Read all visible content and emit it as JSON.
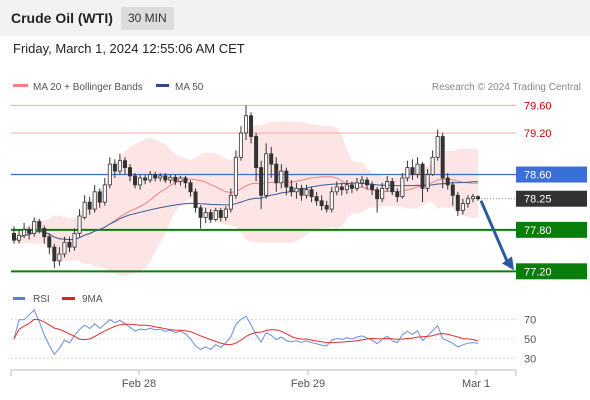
{
  "header": {
    "title": "Crude Oil (WTI)",
    "timeframe": "30 MIN"
  },
  "datetime": "Friday, March 1, 2024 12:55:06 AM CET",
  "credit": "Research © 2024 Trading Central",
  "colors": {
    "resistance": "#f4a6a6",
    "resistance_text": "#cc0000",
    "pivot": "#3a6fd8",
    "support": "#0a7d0a",
    "current": "#333333",
    "candle_up": "#ffffff",
    "candle_down": "#333333",
    "band": "#fde0e0",
    "ma20": "#f08080",
    "ma50": "#3a5a9a",
    "rsi": "#6a8fe0",
    "rsi_ma": "#e03030",
    "arrow": "#2a5aa0"
  },
  "chart_data": {
    "type": "candlestick",
    "legend": [
      {
        "name": "MA 20 + Bollinger Bands",
        "color": "#f08080"
      },
      {
        "name": "MA 50",
        "color": "#2a4a8a"
      }
    ],
    "x_ticks": [
      "Feb 28",
      "Feb 29",
      "Mar 1"
    ],
    "ylim": [
      77.06,
      79.75
    ],
    "levels": [
      {
        "value": 79.6,
        "label": "79.60",
        "kind": "resistance"
      },
      {
        "value": 79.2,
        "label": "79.20",
        "kind": "resistance"
      },
      {
        "value": 78.6,
        "label": "78.60",
        "kind": "pivot"
      },
      {
        "value": 78.25,
        "label": "78.25",
        "kind": "current"
      },
      {
        "value": 77.8,
        "label": "77.80",
        "kind": "support"
      },
      {
        "value": 77.2,
        "label": "77.20",
        "kind": "support"
      }
    ],
    "candles": [
      [
        77.75,
        77.65,
        77.85,
        77.6
      ],
      [
        77.65,
        77.72,
        77.8,
        77.6
      ],
      [
        77.72,
        77.8,
        77.9,
        77.68
      ],
      [
        77.8,
        77.75,
        77.85,
        77.66
      ],
      [
        77.75,
        77.92,
        77.98,
        77.7
      ],
      [
        77.92,
        77.82,
        77.96,
        77.75
      ],
      [
        77.82,
        77.7,
        77.86,
        77.6
      ],
      [
        77.7,
        77.55,
        77.75,
        77.45
      ],
      [
        77.55,
        77.35,
        77.6,
        77.25
      ],
      [
        77.35,
        77.45,
        77.55,
        77.28
      ],
      [
        77.45,
        77.62,
        77.7,
        77.4
      ],
      [
        77.62,
        77.55,
        77.7,
        77.48
      ],
      [
        77.55,
        77.75,
        77.82,
        77.5
      ],
      [
        77.75,
        78.0,
        78.1,
        77.7
      ],
      [
        77.98,
        78.2,
        78.3,
        77.95
      ],
      [
        78.2,
        78.1,
        78.28,
        78.02
      ],
      [
        78.1,
        78.35,
        78.45,
        78.05
      ],
      [
        78.35,
        78.2,
        78.4,
        78.12
      ],
      [
        78.2,
        78.45,
        78.55,
        78.15
      ],
      [
        78.45,
        78.75,
        78.85,
        78.4
      ],
      [
        78.75,
        78.65,
        78.82,
        78.55
      ],
      [
        78.65,
        78.8,
        78.9,
        78.6
      ],
      [
        78.8,
        78.7,
        78.85,
        78.6
      ],
      [
        78.7,
        78.58,
        78.75,
        78.5
      ],
      [
        78.58,
        78.45,
        78.62,
        78.4
      ],
      [
        78.45,
        78.55,
        78.6,
        78.38
      ],
      [
        78.55,
        78.52,
        78.6,
        78.46
      ],
      [
        78.52,
        78.6,
        78.65,
        78.48
      ],
      [
        78.6,
        78.55,
        78.64,
        78.5
      ],
      [
        78.55,
        78.58,
        78.62,
        78.5
      ],
      [
        78.58,
        78.52,
        78.62,
        78.48
      ],
      [
        78.52,
        78.56,
        78.6,
        78.47
      ],
      [
        78.56,
        78.5,
        78.6,
        78.45
      ],
      [
        78.5,
        78.55,
        78.58,
        78.44
      ],
      [
        78.55,
        78.48,
        78.58,
        78.4
      ],
      [
        78.48,
        78.35,
        78.52,
        78.28
      ],
      [
        78.35,
        78.12,
        78.4,
        78.05
      ],
      [
        78.12,
        77.98,
        78.16,
        77.82
      ],
      [
        77.98,
        78.05,
        78.12,
        77.9
      ],
      [
        78.05,
        77.95,
        78.1,
        77.9
      ],
      [
        77.95,
        78.08,
        78.12,
        77.92
      ],
      [
        78.08,
        77.98,
        78.12,
        77.92
      ],
      [
        77.98,
        78.1,
        78.14,
        77.93
      ],
      [
        78.1,
        78.3,
        78.4,
        78.05
      ],
      [
        78.3,
        78.85,
        78.95,
        78.25
      ],
      [
        78.85,
        79.2,
        79.3,
        78.8
      ],
      [
        79.2,
        79.45,
        79.6,
        79.1
      ],
      [
        79.45,
        79.15,
        79.5,
        79.05
      ],
      [
        79.15,
        78.7,
        79.2,
        78.5
      ],
      [
        78.7,
        78.3,
        78.8,
        78.1
      ],
      [
        78.3,
        78.9,
        79.05,
        78.25
      ],
      [
        78.9,
        78.75,
        79.0,
        78.55
      ],
      [
        78.75,
        78.48,
        78.85,
        78.35
      ],
      [
        78.48,
        78.65,
        78.75,
        78.4
      ],
      [
        78.65,
        78.42,
        78.7,
        78.3
      ],
      [
        78.42,
        78.35,
        78.52,
        78.28
      ],
      [
        78.35,
        78.4,
        78.48,
        78.25
      ],
      [
        78.4,
        78.3,
        78.45,
        78.22
      ],
      [
        78.3,
        78.38,
        78.45,
        78.25
      ],
      [
        78.38,
        78.28,
        78.42,
        78.2
      ],
      [
        78.28,
        78.22,
        78.35,
        78.15
      ],
      [
        78.22,
        78.15,
        78.3,
        78.08
      ],
      [
        78.15,
        78.1,
        78.22,
        78.05
      ],
      [
        78.1,
        78.35,
        78.42,
        78.05
      ],
      [
        78.35,
        78.42,
        78.5,
        78.3
      ],
      [
        78.42,
        78.38,
        78.48,
        78.3
      ],
      [
        78.38,
        78.45,
        78.52,
        78.32
      ],
      [
        78.45,
        78.4,
        78.5,
        78.33
      ],
      [
        78.4,
        78.48,
        78.55,
        78.36
      ],
      [
        78.48,
        78.52,
        78.58,
        78.42
      ],
      [
        78.52,
        78.45,
        78.56,
        78.38
      ],
      [
        78.45,
        78.38,
        78.5,
        78.3
      ],
      [
        78.38,
        78.25,
        78.42,
        78.05
      ],
      [
        78.25,
        78.4,
        78.48,
        78.2
      ],
      [
        78.4,
        78.5,
        78.58,
        78.35
      ],
      [
        78.5,
        78.35,
        78.55,
        78.3
      ],
      [
        78.35,
        78.28,
        78.4,
        78.2
      ],
      [
        78.28,
        78.55,
        78.62,
        78.25
      ],
      [
        78.55,
        78.7,
        78.8,
        78.5
      ],
      [
        78.7,
        78.6,
        78.82,
        78.52
      ],
      [
        78.6,
        78.75,
        78.85,
        78.55
      ],
      [
        78.75,
        78.4,
        78.78,
        78.2
      ],
      [
        78.4,
        78.6,
        78.68,
        78.35
      ],
      [
        78.6,
        78.85,
        78.95,
        78.58
      ],
      [
        78.85,
        79.15,
        79.25,
        78.8
      ],
      [
        79.15,
        78.55,
        79.2,
        78.4
      ],
      [
        78.55,
        78.45,
        78.62,
        78.38
      ],
      [
        78.45,
        78.3,
        78.5,
        78.15
      ],
      [
        78.3,
        78.08,
        78.35,
        78.0
      ],
      [
        78.08,
        78.18,
        78.25,
        78.02
      ],
      [
        78.18,
        78.25,
        78.3,
        78.12
      ],
      [
        78.25,
        78.28,
        78.32,
        78.2
      ],
      [
        78.28,
        78.25,
        78.3,
        78.22
      ]
    ]
  },
  "rsi": {
    "legend": [
      {
        "name": "RSI",
        "color": "#5a7fd8"
      },
      {
        "name": "9MA",
        "color": "#e02020"
      }
    ],
    "ticks": [
      "70",
      "50",
      "30"
    ],
    "ylim": [
      20,
      80
    ]
  }
}
